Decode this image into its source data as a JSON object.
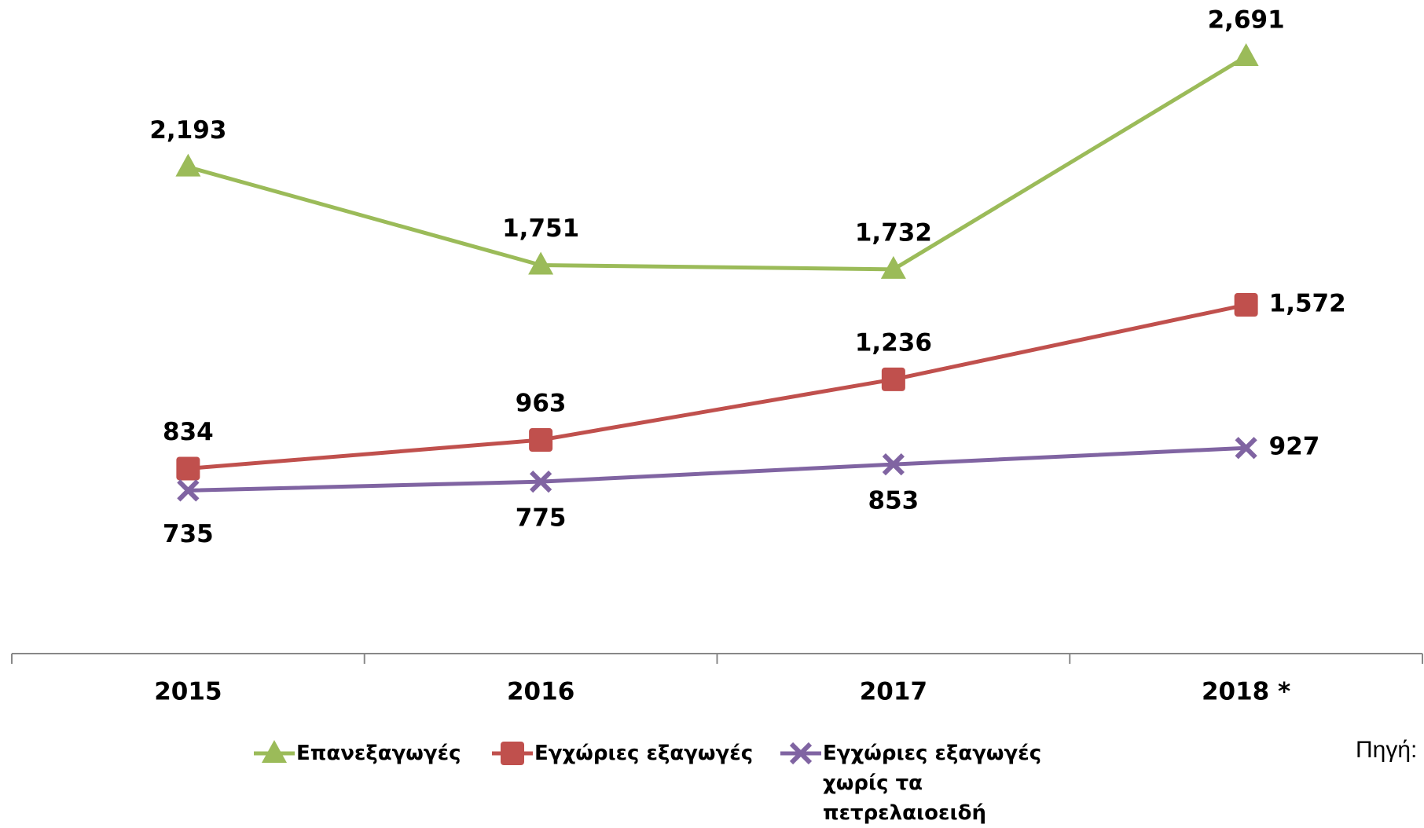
{
  "chart_data": {
    "type": "line",
    "categories": [
      "2015",
      "2016",
      "2017",
      "2018 *"
    ],
    "ylim": [
      0,
      2900
    ],
    "series": [
      {
        "name": "Επανεξαγωγές",
        "color": "#9bbb59",
        "marker": "triangle",
        "values": [
          2193,
          1751,
          1732,
          2691
        ],
        "value_labels": [
          "2,193",
          "1,751",
          "1,732",
          "2,691"
        ]
      },
      {
        "name": "Εγχώριες εξαγωγές",
        "color": "#c0504d",
        "marker": "square",
        "values": [
          834,
          963,
          1236,
          1572
        ],
        "value_labels": [
          "834",
          "963",
          "1,236",
          "1,572"
        ]
      },
      {
        "name": "Εγχώριες εξαγωγές χωρίς τα πετρελαιοειδή",
        "color": "#8064a2",
        "marker": "x",
        "values": [
          735,
          775,
          853,
          927
        ]
      }
    ],
    "legend": "bottom",
    "source": "Πηγή:"
  }
}
